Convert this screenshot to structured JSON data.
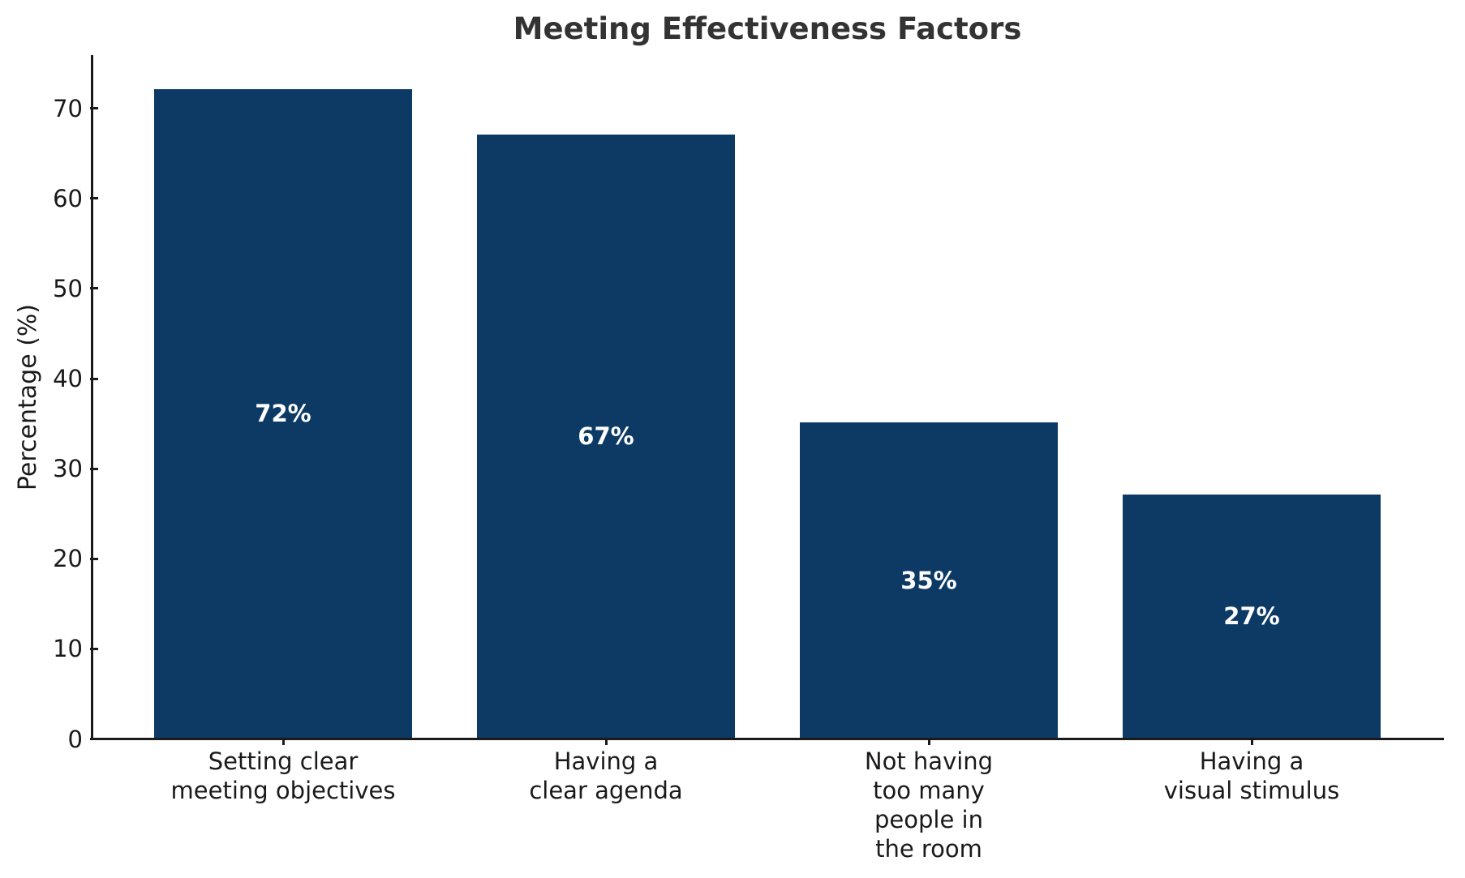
{
  "chart_data": {
    "type": "bar",
    "title": "Meeting Effectiveness Factors",
    "xlabel": "",
    "ylabel": "Percentage (%)",
    "categories": [
      "Setting clear\nmeeting objectives",
      "Having a\nclear agenda",
      "Not having\ntoo many\npeople in\nthe room",
      "Having a\nvisual stimulus"
    ],
    "values": [
      72,
      67,
      35,
      27
    ],
    "value_labels": [
      "72%",
      "67%",
      "35%",
      "27%"
    ],
    "yticks": [
      0,
      10,
      20,
      30,
      40,
      50,
      60,
      70
    ],
    "ytick_labels": [
      "0",
      "10",
      "20",
      "30",
      "40",
      "50",
      "60",
      "70"
    ],
    "ylim": [
      0,
      75.6
    ],
    "grid": false,
    "legend": null,
    "bar_color": "#0c3a64",
    "value_label_color": "#ffffff",
    "title_color": "#333333",
    "axis_color": "#1a1a1a"
  }
}
